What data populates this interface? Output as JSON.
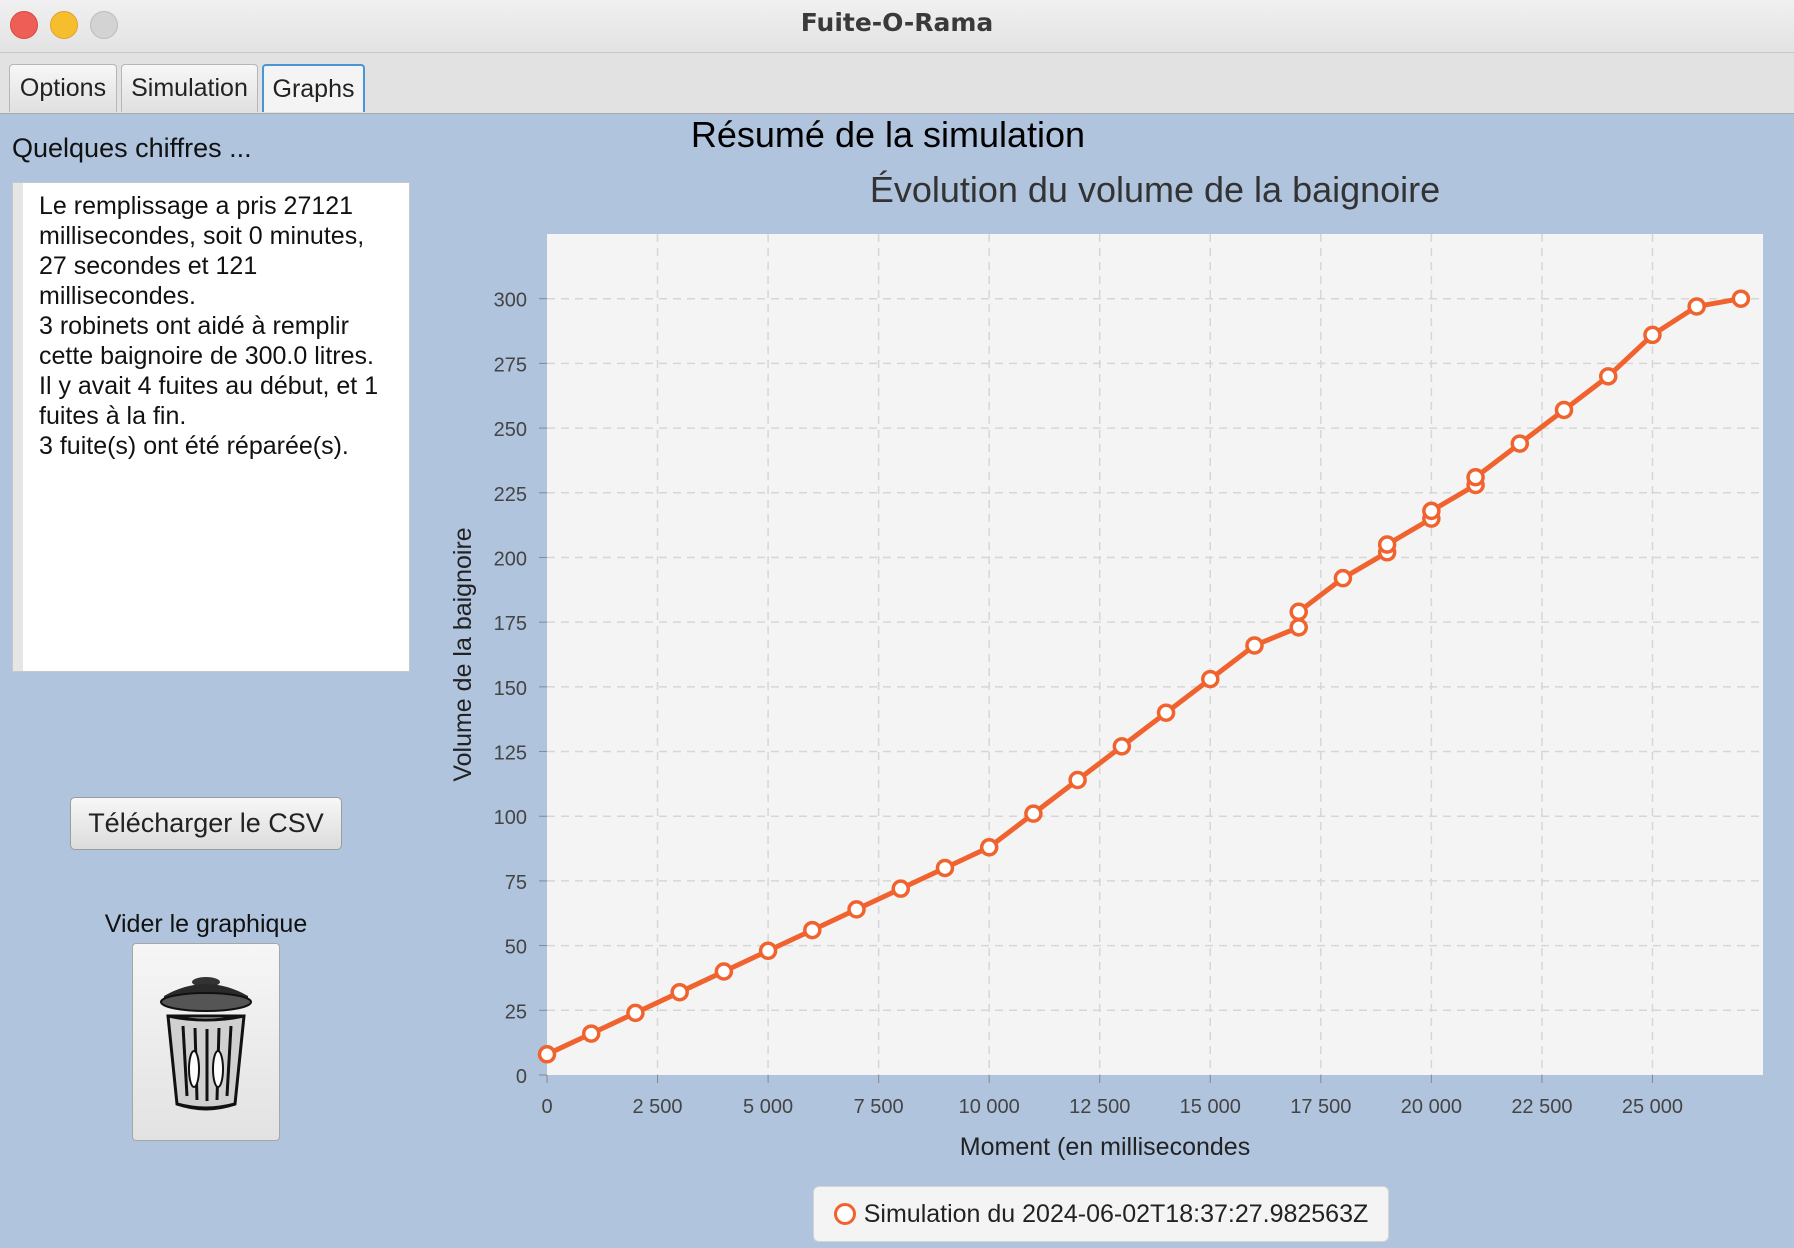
{
  "window": {
    "title": "Fuite-O-Rama"
  },
  "tabs": [
    {
      "label": "Options",
      "active": false
    },
    {
      "label": "Simulation",
      "active": false
    },
    {
      "label": "Graphs",
      "active": true
    }
  ],
  "sidebar": {
    "summary_label": "Quelques chiffres ...",
    "summary_text": "Le remplissage a pris 27121\nmillisecondes, soit 0 minutes,\n27 secondes et 121\nmillisecondes.\n3 robinets ont aidé à remplir\ncette baignoire de 300.0 litres.\nIl y avait 4 fuites au début, et 1\nfuites à la fin.\n3 fuite(s) ont été réparée(s).",
    "csv_button_label": "Télécharger le CSV",
    "clear_label": "Vider le graphique",
    "clear_icon": "trash-can-icon"
  },
  "main": {
    "title": "Résumé de la simulation"
  },
  "colors": {
    "series": "#f0632e",
    "plot_background": "#f4f4f4",
    "page_background": "#b0c4de"
  },
  "chart_data": {
    "type": "line",
    "title": "Évolution du volume de la baignoire",
    "xlabel": "Moment (en millisecondes",
    "ylabel": "Volume de la baignoire",
    "xlim": [
      0,
      27500
    ],
    "ylim": [
      0,
      325
    ],
    "xticks": [
      0,
      2500,
      5000,
      7500,
      10000,
      12500,
      15000,
      17500,
      20000,
      22500,
      25000
    ],
    "xtick_labels": [
      "0",
      "2 500",
      "5 000",
      "7 500",
      "10 000",
      "12 500",
      "15 000",
      "17 500",
      "20 000",
      "22 500",
      "25 000"
    ],
    "yticks": [
      0,
      25,
      50,
      75,
      100,
      125,
      150,
      175,
      200,
      225,
      250,
      275,
      300
    ],
    "grid": true,
    "legend_position": "bottom",
    "series": [
      {
        "name": "Simulation du 2024-06-02T18:37:27.982563Z",
        "x": [
          0,
          1000,
          2000,
          3000,
          4000,
          5000,
          6000,
          7000,
          8000,
          9000,
          10000,
          11000,
          12000,
          13000,
          14000,
          15000,
          16000,
          17000,
          17000,
          18000,
          19000,
          19000,
          20000,
          20000,
          21000,
          21000,
          22000,
          23000,
          24000,
          25000,
          26000,
          27000
        ],
        "y": [
          8,
          16,
          24,
          32,
          40,
          48,
          56,
          64,
          72,
          80,
          88,
          101,
          114,
          127,
          140,
          153,
          166,
          173,
          179,
          192,
          202,
          205,
          215,
          218,
          228,
          231,
          244,
          257,
          270,
          286,
          297,
          300
        ]
      }
    ]
  }
}
